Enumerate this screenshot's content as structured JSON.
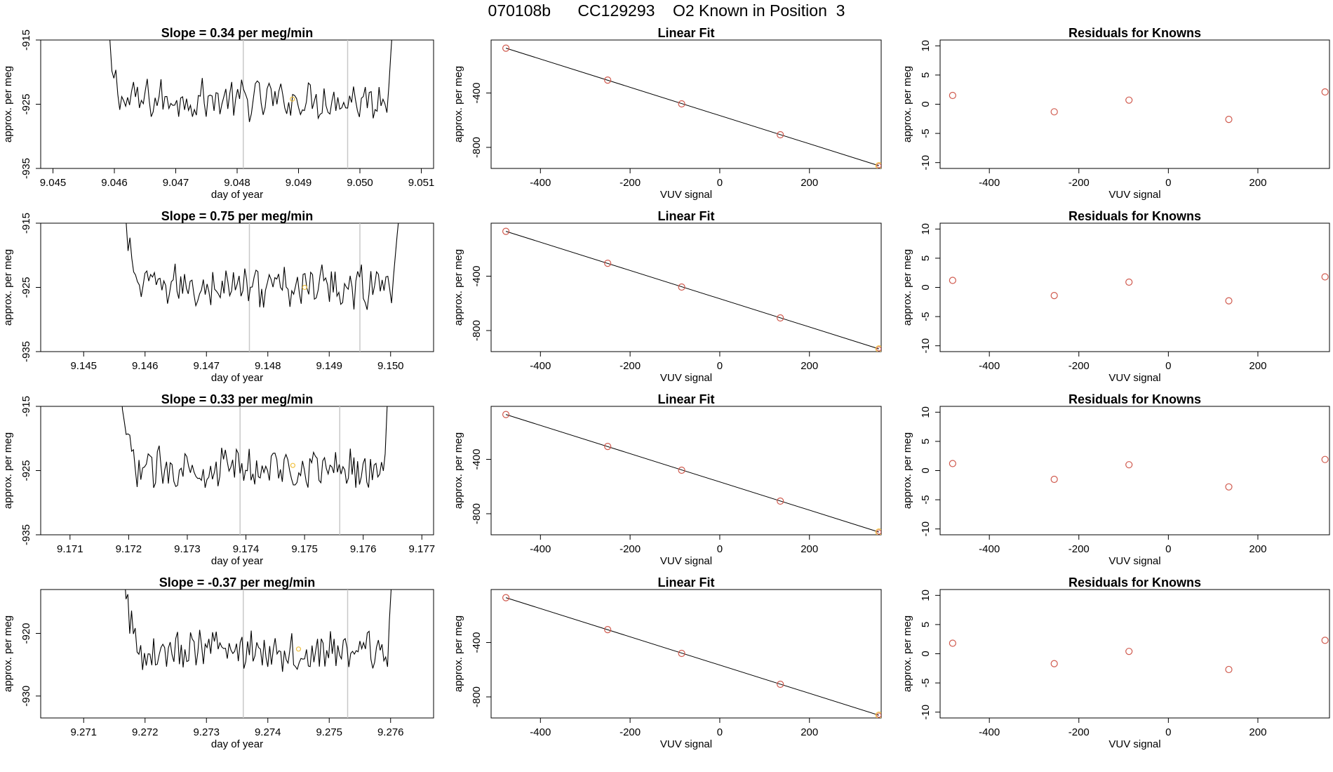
{
  "page_title": "070108b      CC129293    O2 Known in Position  3",
  "chart_data": [
    {
      "type": "line",
      "panel": "timeseries",
      "row": 0,
      "title": "Slope =  0.34  per meg/min",
      "xlabel": "day of year",
      "ylabel": "approx. per meg",
      "xlim": [
        9.0448,
        9.0512
      ],
      "ylim": [
        -935,
        -915
      ],
      "x_ticks": [
        "9.045",
        "9.046",
        "9.047",
        "9.048",
        "9.049",
        "9.050",
        "9.051"
      ],
      "y_ticks": [
        "-935",
        "-925",
        "-915"
      ],
      "vlines": [
        9.0481,
        9.0498
      ],
      "series": [
        {
          "x_start": 9.0458,
          "x_end": 9.0506,
          "baseline": -924.3,
          "amplitude": 2.6,
          "values": []
        }
      ],
      "highlight_points": [
        {
          "x": 9.0489,
          "y": -924.2,
          "color": "#f0c040"
        }
      ]
    },
    {
      "type": "scatter",
      "panel": "linear_fit",
      "row": 0,
      "title": "Linear Fit",
      "xlabel": "VUV signal",
      "ylabel": "approx. per meg",
      "xlim": [
        -510,
        360
      ],
      "ylim": [
        -955,
        -10
      ],
      "x_ticks": [
        "-400",
        "-200",
        "0",
        "200"
      ],
      "y_ticks": [
        "-800",
        "-400"
      ],
      "x": [
        -477,
        -250,
        -85,
        135,
        355
      ],
      "y": [
        -70,
        -305,
        -480,
        -707,
        -935
      ],
      "highlight_index": 4,
      "fit_line": {
        "x1": -477,
        "y1": -70,
        "x2": 355,
        "y2": -935
      }
    },
    {
      "type": "scatter",
      "panel": "residuals",
      "row": 0,
      "title": "Residuals for Knowns",
      "xlabel": "VUV signal",
      "ylabel": "approx. per meg",
      "xlim": [
        -510,
        360
      ],
      "ylim": [
        -11,
        11
      ],
      "x_ticks": [
        "-400",
        "-200",
        "0",
        "200"
      ],
      "y_ticks": [
        "-10",
        "-5",
        "0",
        "5",
        "10"
      ],
      "x": [
        -482,
        -255,
        -88,
        135,
        350
      ],
      "y": [
        1.5,
        -1.3,
        0.7,
        -2.6,
        2.1
      ]
    },
    {
      "type": "line",
      "panel": "timeseries",
      "row": 1,
      "title": "Slope =  0.75  per meg/min",
      "xlabel": "day of year",
      "ylabel": "approx. per meg",
      "xlim": [
        9.1443,
        9.1507
      ],
      "ylim": [
        -935,
        -915
      ],
      "x_ticks": [
        "9.145",
        "9.146",
        "9.147",
        "9.148",
        "9.149",
        "9.150"
      ],
      "y_ticks": [
        "-935",
        "-925",
        "-915"
      ],
      "vlines": [
        9.1477,
        9.1495
      ],
      "series": [
        {
          "x_start": 9.1456,
          "x_end": 9.1502,
          "baseline": -924.8,
          "amplitude": 2.8,
          "values": []
        }
      ],
      "highlight_points": [
        {
          "x": 9.1486,
          "y": -925.0,
          "color": "#f0c040"
        }
      ]
    },
    {
      "type": "scatter",
      "panel": "linear_fit",
      "row": 1,
      "title": "Linear Fit",
      "xlabel": "VUV signal",
      "ylabel": "approx. per meg",
      "xlim": [
        -510,
        360
      ],
      "ylim": [
        -955,
        -10
      ],
      "x_ticks": [
        "-400",
        "-200",
        "0",
        "200"
      ],
      "y_ticks": [
        "-800",
        "-400"
      ],
      "x": [
        -477,
        -250,
        -85,
        135,
        355
      ],
      "y": [
        -70,
        -305,
        -480,
        -707,
        -935
      ],
      "highlight_index": 4,
      "fit_line": {
        "x1": -477,
        "y1": -70,
        "x2": 355,
        "y2": -935
      }
    },
    {
      "type": "scatter",
      "panel": "residuals",
      "row": 1,
      "title": "Residuals for Knowns",
      "xlabel": "VUV signal",
      "ylabel": "approx. per meg",
      "xlim": [
        -510,
        360
      ],
      "ylim": [
        -11,
        11
      ],
      "x_ticks": [
        "-400",
        "-200",
        "0",
        "200"
      ],
      "y_ticks": [
        "-10",
        "-5",
        "0",
        "5",
        "10"
      ],
      "x": [
        -482,
        -255,
        -88,
        135,
        350
      ],
      "y": [
        1.2,
        -1.4,
        0.9,
        -2.3,
        1.8
      ]
    },
    {
      "type": "line",
      "panel": "timeseries",
      "row": 2,
      "title": "Slope =  0.33  per meg/min",
      "xlabel": "day of year",
      "ylabel": "approx. per meg",
      "xlim": [
        9.1705,
        9.1772
      ],
      "ylim": [
        -935,
        -915
      ],
      "x_ticks": [
        "9.171",
        "9.172",
        "9.173",
        "9.174",
        "9.175",
        "9.176",
        "9.177"
      ],
      "y_ticks": [
        "-935",
        "-925",
        "-915"
      ],
      "vlines": [
        9.1739,
        9.1756
      ],
      "series": [
        {
          "x_start": 9.1718,
          "x_end": 9.1765,
          "baseline": -924.6,
          "amplitude": 2.6,
          "values": []
        }
      ],
      "highlight_points": [
        {
          "x": 9.1748,
          "y": -924.2,
          "color": "#f0c040"
        }
      ]
    },
    {
      "type": "scatter",
      "panel": "linear_fit",
      "row": 2,
      "title": "Linear Fit",
      "xlabel": "VUV signal",
      "ylabel": "approx. per meg",
      "xlim": [
        -510,
        360
      ],
      "ylim": [
        -955,
        -10
      ],
      "x_ticks": [
        "-400",
        "-200",
        "0",
        "200"
      ],
      "y_ticks": [
        "-800",
        "-400"
      ],
      "x": [
        -477,
        -250,
        -85,
        135,
        355
      ],
      "y": [
        -70,
        -305,
        -480,
        -707,
        -935
      ],
      "highlight_index": 4,
      "fit_line": {
        "x1": -477,
        "y1": -70,
        "x2": 355,
        "y2": -935
      }
    },
    {
      "type": "scatter",
      "panel": "residuals",
      "row": 2,
      "title": "Residuals for Knowns",
      "xlabel": "VUV signal",
      "ylabel": "approx. per meg",
      "xlim": [
        -510,
        360
      ],
      "ylim": [
        -11,
        11
      ],
      "x_ticks": [
        "-400",
        "-200",
        "0",
        "200"
      ],
      "y_ticks": [
        "-10",
        "-5",
        "0",
        "5",
        "10"
      ],
      "x": [
        -482,
        -255,
        -88,
        135,
        350
      ],
      "y": [
        1.2,
        -1.5,
        1.0,
        -2.8,
        1.9
      ]
    },
    {
      "type": "line",
      "panel": "timeseries",
      "row": 3,
      "title": "Slope =  -0.37  per meg/min",
      "xlabel": "day of year",
      "ylabel": "approx. per meg",
      "xlim": [
        9.2703,
        9.2767
      ],
      "ylim": [
        -933.5,
        -913
      ],
      "x_ticks": [
        "9.271",
        "9.272",
        "9.273",
        "9.274",
        "9.275",
        "9.276"
      ],
      "y_ticks": [
        "-930",
        "-920"
      ],
      "vlines": [
        9.2736,
        9.2753
      ],
      "series": [
        {
          "x_start": 9.2716,
          "x_end": 9.2761,
          "baseline": -922.8,
          "amplitude": 2.8,
          "values": []
        }
      ],
      "highlight_points": [
        {
          "x": 9.2745,
          "y": -922.5,
          "color": "#f0c040"
        }
      ]
    },
    {
      "type": "scatter",
      "panel": "linear_fit",
      "row": 3,
      "title": "Linear Fit",
      "xlabel": "VUV signal",
      "ylabel": "approx. per meg",
      "xlim": [
        -510,
        360
      ],
      "ylim": [
        -955,
        -10
      ],
      "x_ticks": [
        "-400",
        "-200",
        "0",
        "200"
      ],
      "y_ticks": [
        "-800",
        "-400"
      ],
      "x": [
        -477,
        -250,
        -85,
        135,
        355
      ],
      "y": [
        -70,
        -305,
        -480,
        -707,
        -935
      ],
      "highlight_index": 4,
      "fit_line": {
        "x1": -477,
        "y1": -70,
        "x2": 355,
        "y2": -935
      }
    },
    {
      "type": "scatter",
      "panel": "residuals",
      "row": 3,
      "title": "Residuals for Knowns",
      "xlabel": "VUV signal",
      "ylabel": "approx. per meg",
      "xlim": [
        -510,
        360
      ],
      "ylim": [
        -11,
        11
      ],
      "x_ticks": [
        "-400",
        "-200",
        "0",
        "200"
      ],
      "y_ticks": [
        "-10",
        "-5",
        "0",
        "5",
        "10"
      ],
      "x": [
        -482,
        -255,
        -88,
        135,
        350
      ],
      "y": [
        1.8,
        -1.7,
        0.4,
        -2.7,
        2.3
      ]
    }
  ],
  "colors": {
    "line": "#000000",
    "point": "#d05a4e",
    "highlight": "#f0c040",
    "vline": "#c8c8c8",
    "fit": "#000000"
  }
}
